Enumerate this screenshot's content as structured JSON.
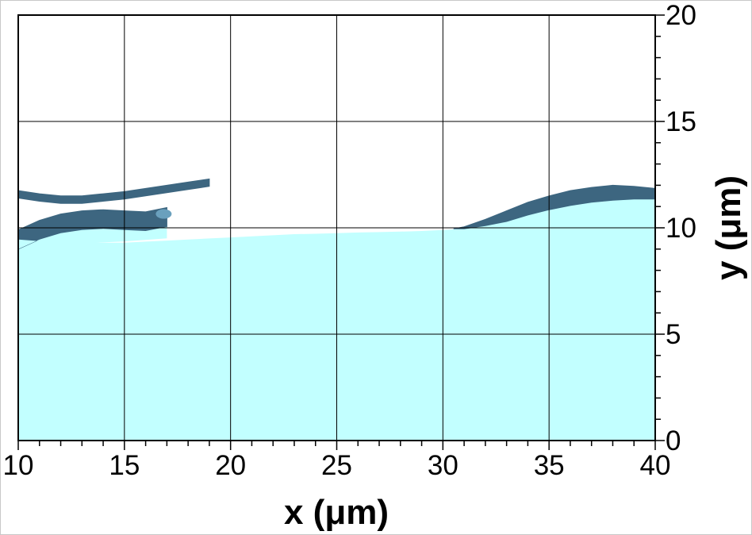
{
  "chart_data": {
    "type": "area",
    "xlabel": "x (μm)",
    "ylabel": "y (μm)",
    "xlim": [
      10,
      40
    ],
    "ylim": [
      0,
      20
    ],
    "xticks": [
      10,
      15,
      20,
      25,
      30,
      35,
      40
    ],
    "yticks": [
      0,
      5,
      10,
      15,
      20
    ],
    "xtick_labels": [
      "10",
      "15",
      "20",
      "25",
      "30",
      "35",
      "40"
    ],
    "ytick_labels": [
      "0",
      "5",
      "10",
      "15",
      "20"
    ],
    "y_axis_side": "right",
    "grid": true,
    "colors": {
      "liquid": "#c2ffff",
      "interface": "#3d6680",
      "interface_light": "#6aa0bd",
      "grid": "#000000"
    },
    "series": [
      {
        "role": "liquid_surface",
        "x": [
          10,
          11,
          12,
          13,
          14,
          15,
          16,
          17,
          18,
          19,
          20,
          21,
          22,
          23,
          24,
          25,
          26,
          27,
          28,
          29,
          30,
          31,
          32,
          33,
          34,
          35,
          36,
          37,
          38,
          39,
          40
        ],
        "y": [
          9.45,
          9.45,
          9.4,
          9.35,
          9.3,
          9.3,
          9.35,
          9.4,
          9.45,
          9.5,
          9.55,
          9.6,
          9.65,
          9.7,
          9.72,
          9.75,
          9.78,
          9.8,
          9.82,
          9.85,
          9.9,
          9.95,
          10.1,
          10.3,
          10.6,
          10.85,
          11.05,
          11.2,
          11.3,
          11.35,
          11.35
        ]
      },
      {
        "role": "wave_crest_top",
        "x": [
          30.5,
          31,
          32,
          33,
          34,
          35,
          36,
          37,
          38,
          39,
          40
        ],
        "y": [
          9.95,
          10.05,
          10.4,
          10.8,
          11.2,
          11.5,
          11.75,
          11.9,
          12.0,
          11.95,
          11.85
        ]
      },
      {
        "role": "lower_finger_top",
        "x": [
          10,
          11,
          12,
          13,
          14,
          15,
          16,
          17
        ],
        "y": [
          9.9,
          10.35,
          10.65,
          10.8,
          10.85,
          10.8,
          10.75,
          10.95
        ]
      },
      {
        "role": "upper_ligament",
        "x": [
          10,
          11,
          12,
          13,
          14,
          15,
          16,
          17,
          18,
          19
        ],
        "y": [
          11.75,
          11.6,
          11.5,
          11.5,
          11.6,
          11.7,
          11.85,
          12.0,
          12.15,
          12.3
        ]
      }
    ]
  }
}
